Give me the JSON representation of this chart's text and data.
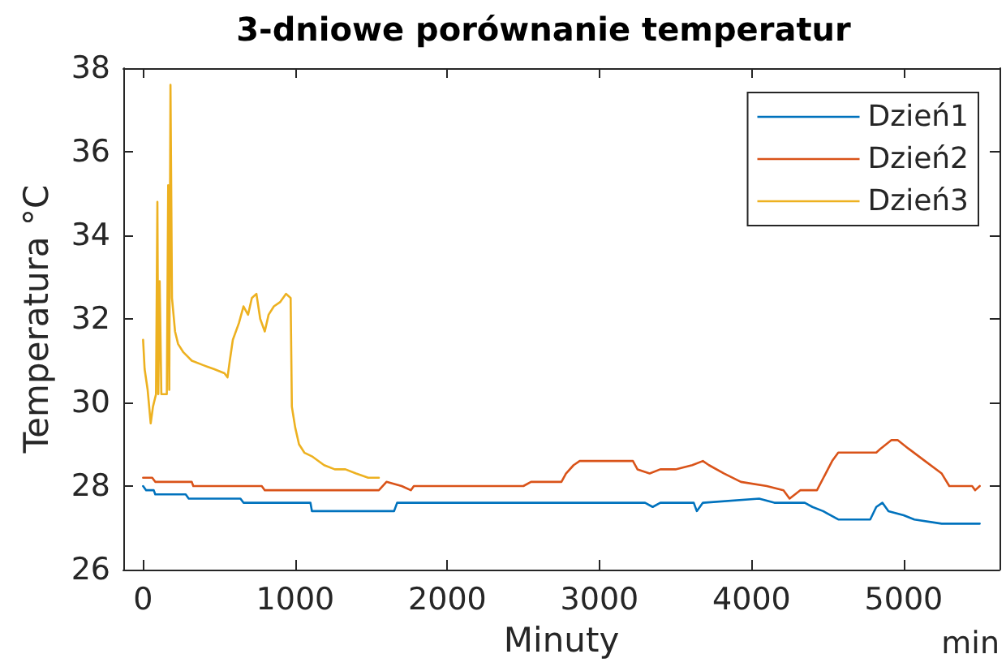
{
  "chart_data": {
    "type": "line",
    "title": "3-dniowe porównanie temperatur",
    "xlabel": "Minuty",
    "ylabel": "Temperatura °C",
    "annotations": [
      "min"
    ],
    "xlim": [
      -130,
      5630
    ],
    "xticks": [
      0,
      1000,
      2000,
      3000,
      4000,
      5000
    ],
    "ylim": [
      26,
      38
    ],
    "yticks": [
      26,
      28,
      30,
      32,
      34,
      36,
      38
    ],
    "grid": false,
    "legend": "top right",
    "series": [
      {
        "name": "Dzień1",
        "color": "#0072bd",
        "x": [
          0,
          20,
          70,
          80,
          280,
          300,
          640,
          660,
          1100,
          1110,
          1650,
          1670,
          3300,
          3350,
          3400,
          3620,
          3640,
          3680,
          4050,
          4150,
          4350,
          4400,
          4470,
          4570,
          4780,
          4820,
          4860,
          4900,
          5000,
          5070,
          5250,
          5500
        ],
        "values": [
          28.0,
          27.9,
          27.9,
          27.8,
          27.8,
          27.7,
          27.7,
          27.6,
          27.6,
          27.4,
          27.4,
          27.6,
          27.6,
          27.5,
          27.6,
          27.6,
          27.4,
          27.6,
          27.7,
          27.6,
          27.6,
          27.5,
          27.4,
          27.2,
          27.2,
          27.5,
          27.6,
          27.4,
          27.3,
          27.2,
          27.1,
          27.1
        ]
      },
      {
        "name": "Dzień2",
        "color": "#d95319",
        "x": [
          0,
          60,
          80,
          320,
          330,
          780,
          800,
          1500,
          1550,
          1600,
          1700,
          1760,
          1780,
          2500,
          2550,
          2750,
          2780,
          2830,
          2870,
          3220,
          3250,
          3330,
          3400,
          3500,
          3610,
          3680,
          3720,
          3820,
          3930,
          4100,
          4210,
          4250,
          4320,
          4430,
          4530,
          4570,
          4680,
          4820,
          4850,
          4920,
          4960,
          5030,
          5140,
          5250,
          5300,
          5450,
          5470,
          5500
        ],
        "values": [
          28.2,
          28.2,
          28.1,
          28.1,
          28.0,
          28.0,
          27.9,
          27.9,
          27.9,
          28.1,
          28.0,
          27.9,
          28.0,
          28.0,
          28.1,
          28.1,
          28.3,
          28.5,
          28.6,
          28.6,
          28.4,
          28.3,
          28.4,
          28.4,
          28.5,
          28.6,
          28.5,
          28.3,
          28.1,
          28.0,
          27.9,
          27.7,
          27.9,
          27.9,
          28.6,
          28.8,
          28.8,
          28.8,
          28.9,
          29.1,
          29.1,
          28.9,
          28.6,
          28.3,
          28.0,
          28.0,
          27.9,
          28.0
        ]
      },
      {
        "name": "Dzień3",
        "color": "#edb120",
        "x": [
          0,
          10,
          30,
          50,
          65,
          85,
          94,
          100,
          109,
          120,
          156,
          165,
          172,
          180,
          190,
          210,
          230,
          265,
          320,
          390,
          465,
          535,
          555,
          570,
          590,
          630,
          660,
          690,
          715,
          745,
          770,
          800,
          825,
          860,
          900,
          940,
          970,
          978,
          1000,
          1025,
          1060,
          1115,
          1190,
          1260,
          1330,
          1400,
          1480,
          1550
        ],
        "values": [
          31.5,
          30.8,
          30.3,
          29.5,
          29.9,
          30.2,
          34.8,
          30.2,
          32.9,
          30.2,
          30.2,
          35.2,
          30.3,
          37.6,
          32.5,
          31.7,
          31.4,
          31.2,
          31.0,
          30.9,
          30.8,
          30.7,
          30.6,
          31.0,
          31.5,
          31.9,
          32.3,
          32.1,
          32.5,
          32.6,
          32.0,
          31.7,
          32.1,
          32.3,
          32.4,
          32.6,
          32.5,
          29.9,
          29.4,
          29.0,
          28.8,
          28.7,
          28.5,
          28.4,
          28.4,
          28.3,
          28.2,
          28.2
        ]
      }
    ]
  }
}
